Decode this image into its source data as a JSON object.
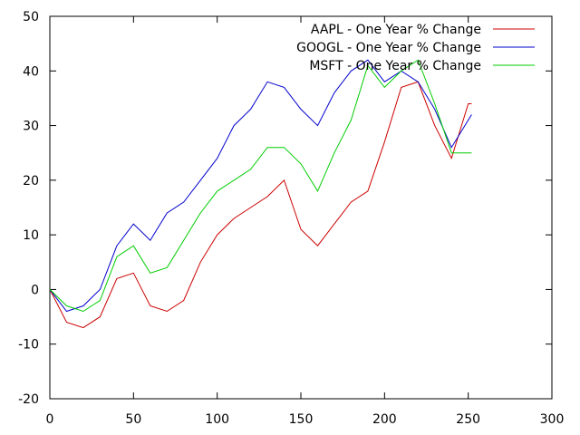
{
  "chart_data": {
    "type": "line",
    "title": "",
    "xlabel": "",
    "ylabel": "",
    "xlim": [
      0,
      300
    ],
    "ylim": [
      -20,
      50
    ],
    "xticks": [
      0,
      50,
      100,
      150,
      200,
      250,
      300
    ],
    "yticks": [
      -20,
      -10,
      0,
      10,
      20,
      30,
      40,
      50
    ],
    "grid": false,
    "legend": "top-right",
    "x": [
      0,
      10,
      20,
      30,
      40,
      50,
      60,
      70,
      80,
      90,
      100,
      110,
      120,
      130,
      140,
      150,
      160,
      170,
      180,
      190,
      200,
      210,
      220,
      230,
      240,
      250,
      252
    ],
    "series": [
      {
        "name": "AAPL - One Year % Change",
        "color": "#cc0000",
        "values": [
          0,
          -6,
          -7,
          -5,
          2,
          3,
          -3,
          -4,
          -2,
          5,
          10,
          13,
          15,
          17,
          20,
          11,
          8,
          12,
          16,
          18,
          27,
          37,
          38,
          30,
          24,
          34,
          34
        ]
      },
      {
        "name": "GOOGL - One Year % Change",
        "color": "#0000cc",
        "values": [
          0,
          -4,
          -3,
          0,
          8,
          12,
          9,
          14,
          16,
          20,
          24,
          30,
          33,
          38,
          37,
          33,
          30,
          36,
          40,
          42,
          38,
          40,
          38,
          33,
          26,
          31,
          32
        ]
      },
      {
        "name": "MSFT - One Year % Change",
        "color": "#00cc00",
        "values": [
          0,
          -3,
          -4,
          -2,
          6,
          8,
          3,
          4,
          9,
          14,
          18,
          20,
          22,
          26,
          26,
          23,
          18,
          25,
          31,
          41,
          37,
          40,
          42,
          34,
          25,
          25,
          25
        ]
      }
    ]
  }
}
